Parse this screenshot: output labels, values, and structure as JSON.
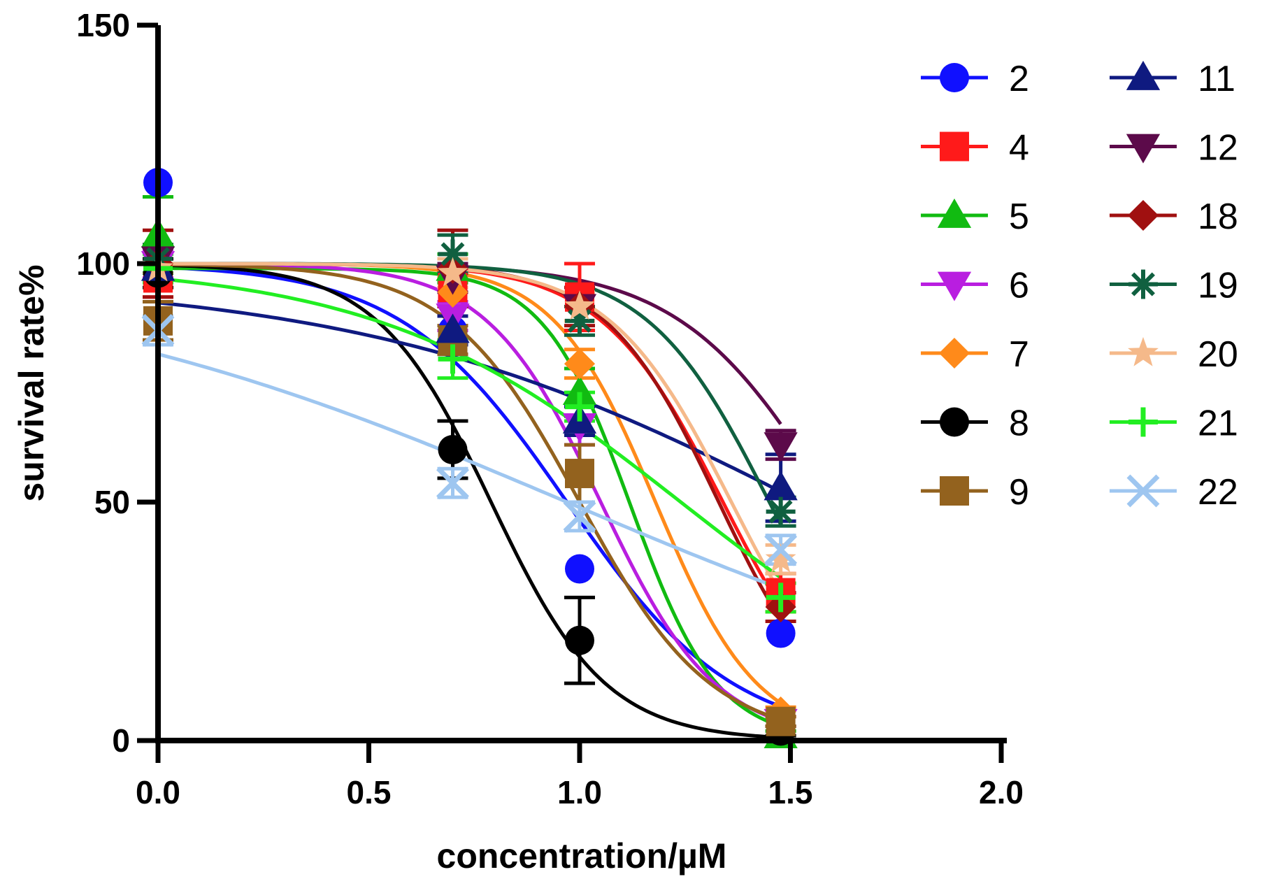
{
  "chart_data": {
    "type": "scatter",
    "title": "",
    "xlabel": "concentration/µM",
    "ylabel": "survival rate%",
    "xlim": [
      0,
      2
    ],
    "ylim": [
      0,
      150
    ],
    "x_ticks": [
      0,
      0.5,
      1,
      1.5,
      2
    ],
    "x_tick_labels": [
      "0.0",
      "0.5",
      "1.0",
      "1.5",
      "2.0"
    ],
    "y_ticks": [
      0,
      50,
      100,
      150
    ],
    "y_tick_labels": [
      "0",
      "50",
      "100",
      "150"
    ],
    "legend_position": "right",
    "x": [
      0,
      0.699,
      1.0,
      1.477
    ],
    "series": [
      {
        "name": "2",
        "color": "#1010ff",
        "marker": "circle",
        "values": [
          117,
          86,
          36,
          22.5
        ],
        "errors": [
          0,
          5,
          0,
          0
        ],
        "fit": {
          "top": 100,
          "bottom": 0,
          "logic50": 0.97,
          "hill": -2.2
        }
      },
      {
        "name": "4",
        "color": "#ff1a1a",
        "marker": "square",
        "values": [
          97,
          95,
          93,
          31
        ],
        "errors": [
          4,
          4,
          7,
          4
        ],
        "fit": {
          "top": 100,
          "bottom": 0,
          "logic50": 1.34,
          "hill": -3.0
        }
      },
      {
        "name": "5",
        "color": "#11bb11",
        "marker": "triangle-up",
        "values": [
          106,
          99,
          73,
          1
        ],
        "errors": [
          8,
          3,
          5,
          1
        ],
        "fit": {
          "top": 99,
          "bottom": 0,
          "logic50": 1.12,
          "hill": -4.2
        }
      },
      {
        "name": "6",
        "color": "#b91ee0",
        "marker": "triangle-down",
        "values": [
          100,
          89,
          66,
          4
        ],
        "errors": [
          3,
          3,
          4,
          1
        ],
        "fit": {
          "top": 100,
          "bottom": 0,
          "logic50": 1.05,
          "hill": -3.2
        }
      },
      {
        "name": "7",
        "color": "#ff8a1a",
        "marker": "diamond",
        "values": [
          98,
          94,
          79,
          6
        ],
        "errors": [
          3,
          3,
          3,
          1
        ],
        "fit": {
          "top": 100,
          "bottom": 0,
          "logic50": 1.18,
          "hill": -3.6
        }
      },
      {
        "name": "8",
        "color": "#000000",
        "marker": "circle",
        "values": [
          98,
          61,
          21,
          2
        ],
        "errors": [
          3,
          6,
          9,
          1
        ],
        "fit": {
          "top": 100,
          "bottom": 0,
          "logic50": 0.79,
          "hill": -3.2
        }
      },
      {
        "name": "9",
        "color": "#93621e",
        "marker": "square",
        "values": [
          88,
          84,
          56,
          4
        ],
        "errors": [
          4,
          3,
          6,
          1
        ],
        "fit": {
          "top": 100,
          "bottom": 0,
          "logic50": 1.0,
          "hill": -2.8
        }
      },
      {
        "name": "11",
        "color": "#0f1a80",
        "marker": "triangle-up",
        "values": [
          99,
          86,
          67,
          53
        ],
        "errors": [
          3,
          3,
          3,
          7
        ],
        "fit": {
          "top": 97,
          "bottom": 0,
          "logic50": 1.56,
          "hill": -0.8
        }
      },
      {
        "name": "12",
        "color": "#5c0a4a",
        "marker": "triangle-down",
        "values": [
          101,
          97,
          91,
          62
        ],
        "errors": [
          3,
          3,
          3,
          3
        ],
        "fit": {
          "top": 100,
          "bottom": 0,
          "logic50": 1.6,
          "hill": -2.4
        }
      },
      {
        "name": "18",
        "color": "#a01010",
        "marker": "diamond",
        "values": [
          100,
          99,
          91,
          28
        ],
        "errors": [
          7,
          8,
          4,
          3
        ],
        "fit": {
          "top": 100,
          "bottom": 0,
          "logic50": 1.33,
          "hill": -3.2
        }
      },
      {
        "name": "19",
        "color": "#106040",
        "marker": "asterisk",
        "values": [
          101,
          102,
          88,
          48
        ],
        "errors": [
          3,
          4,
          3,
          3
        ],
        "fit": {
          "top": 100,
          "bottom": 0,
          "logic50": 1.45,
          "hill": -3.0
        }
      },
      {
        "name": "20",
        "color": "#f5b98a",
        "marker": "star",
        "values": [
          99,
          98,
          91,
          38
        ],
        "errors": [
          3,
          3,
          3,
          3
        ],
        "fit": {
          "top": 100,
          "bottom": 0,
          "logic50": 1.36,
          "hill": -3.0
        }
      },
      {
        "name": "21",
        "color": "#22ee22",
        "marker": "plus",
        "values": [
          99,
          80,
          70,
          30
        ],
        "errors": [
          3,
          4,
          3,
          3
        ],
        "fit": {
          "top": 100,
          "bottom": 0,
          "logic50": 1.24,
          "hill": -1.2
        }
      },
      {
        "name": "22",
        "color": "#9ec6f0",
        "marker": "cross",
        "values": [
          86,
          54,
          47,
          40
        ],
        "errors": [
          3,
          3,
          3,
          3
        ],
        "fit": {
          "top": 100,
          "bottom": 0,
          "logic50": 0.97,
          "hill": -0.65
        }
      }
    ]
  }
}
